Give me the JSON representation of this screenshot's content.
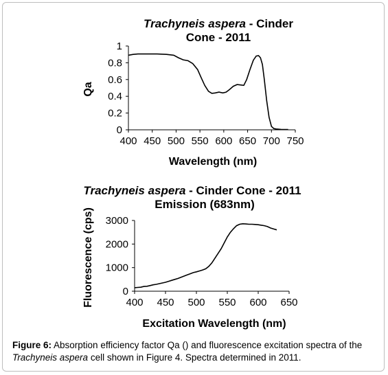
{
  "caption": {
    "label": "Figure 6:",
    "part1": " Absorption efficiency factor Qa () and fluorescence excitation spectra of the ",
    "species": "Trachyneis aspera",
    "part2": " cell shown in Figure 4. Spectra determined in 2011."
  },
  "chart_data": [
    {
      "type": "line",
      "title_italic": "Trachyneis aspera",
      "title_rest_line1": " - Cinder",
      "title_line2": "Cone - 2011",
      "xlabel": "Wavelength (nm)",
      "ylabel": "Qa",
      "xlim": [
        400,
        750
      ],
      "ylim": [
        0,
        1
      ],
      "xticks": [
        400,
        450,
        500,
        550,
        600,
        650,
        700,
        750
      ],
      "yticks": [
        0,
        0.2,
        0.4,
        0.6,
        0.8,
        1
      ],
      "ytick_labels": [
        "0",
        "0.2",
        "0.4",
        "0.6",
        "0.8",
        "1"
      ],
      "grid": false,
      "series": [
        {
          "x": [
            400,
            410,
            420,
            440,
            460,
            480,
            495,
            505,
            515,
            525,
            535,
            545,
            552,
            560,
            568,
            575,
            582,
            590,
            598,
            605,
            612,
            620,
            628,
            635,
            642,
            648,
            655,
            662,
            668,
            673,
            677,
            681,
            685,
            690,
            695,
            700,
            705,
            710,
            720,
            735
          ],
          "y": [
            0.89,
            0.9,
            0.905,
            0.905,
            0.905,
            0.9,
            0.89,
            0.86,
            0.835,
            0.825,
            0.79,
            0.72,
            0.63,
            0.53,
            0.46,
            0.435,
            0.44,
            0.45,
            0.44,
            0.45,
            0.48,
            0.52,
            0.54,
            0.535,
            0.53,
            0.6,
            0.72,
            0.83,
            0.88,
            0.885,
            0.86,
            0.78,
            0.6,
            0.35,
            0.15,
            0.04,
            0.015,
            0.01,
            0.005,
            0.003
          ]
        }
      ]
    },
    {
      "type": "line",
      "title_italic": "Trachyneis aspera",
      "title_rest_line1": " - Cinder Cone - 2011",
      "title_line2": "Emission (683nm)",
      "xlabel": "Excitation Wavelength (nm)",
      "ylabel": "Fluorescence (cps)",
      "xlim": [
        400,
        650
      ],
      "ylim": [
        0,
        3000
      ],
      "xticks": [
        400,
        450,
        500,
        550,
        600,
        650
      ],
      "yticks": [
        0,
        1000,
        2000,
        3000
      ],
      "ytick_labels": [
        "0",
        "1000",
        "2000",
        "3000"
      ],
      "grid": false,
      "series": [
        {
          "x": [
            400,
            405,
            410,
            415,
            420,
            425,
            430,
            435,
            440,
            445,
            450,
            455,
            460,
            465,
            470,
            475,
            480,
            485,
            490,
            495,
            500,
            505,
            510,
            515,
            520,
            525,
            530,
            535,
            540,
            545,
            550,
            555,
            560,
            565,
            570,
            575,
            580,
            585,
            590,
            595,
            600,
            605,
            610,
            615,
            620,
            625,
            630
          ],
          "y": [
            150,
            160,
            170,
            200,
            210,
            240,
            270,
            290,
            320,
            350,
            380,
            420,
            460,
            500,
            540,
            590,
            640,
            690,
            740,
            790,
            820,
            860,
            900,
            950,
            1050,
            1200,
            1400,
            1600,
            1800,
            2050,
            2300,
            2500,
            2650,
            2780,
            2840,
            2860,
            2850,
            2840,
            2840,
            2830,
            2820,
            2800,
            2780,
            2740,
            2680,
            2640,
            2600
          ]
        }
      ]
    }
  ]
}
